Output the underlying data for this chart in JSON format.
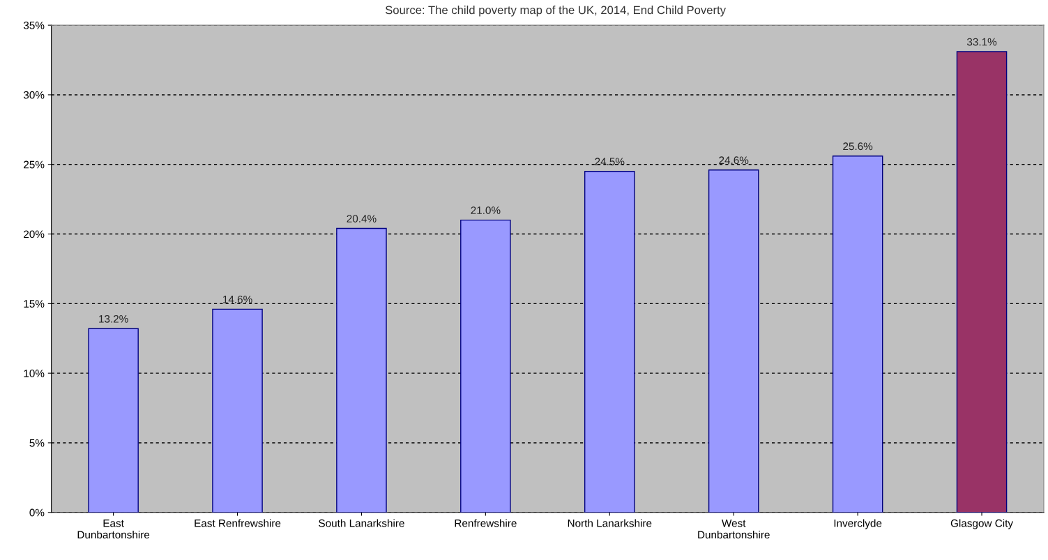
{
  "chart_data": {
    "type": "bar",
    "categories": [
      "East\nDunbartonshire",
      "East Renfrewshire",
      "South Lanarkshire",
      "Renfrewshire",
      "North Lanarkshire",
      "West\nDunbartonshire",
      "Inverclyde",
      "Glasgow City"
    ],
    "values": [
      13.2,
      14.6,
      20.4,
      21.0,
      24.5,
      24.6,
      25.6,
      33.1
    ],
    "value_labels": [
      "13.2%",
      "14.6%",
      "20.4%",
      "21.0%",
      "24.5%",
      "24.6%",
      "25.6%",
      "33.1%"
    ],
    "colors": [
      "#9999ff",
      "#9999ff",
      "#9999ff",
      "#9999ff",
      "#9999ff",
      "#9999ff",
      "#9999ff",
      "#993366"
    ],
    "ylim": [
      0,
      35
    ],
    "yticks": [
      {
        "value": 0,
        "label": "0%"
      },
      {
        "value": 5,
        "label": "5%"
      },
      {
        "value": 10,
        "label": "10%"
      },
      {
        "value": 15,
        "label": "15%"
      },
      {
        "value": 20,
        "label": "20%"
      },
      {
        "value": 25,
        "label": "25%"
      },
      {
        "value": 30,
        "label": "30%"
      },
      {
        "value": 35,
        "label": "35%"
      }
    ],
    "grid": "y",
    "annotations": [
      "Source: The child poverty map of the UK, 2014, End Child Poverty"
    ]
  }
}
